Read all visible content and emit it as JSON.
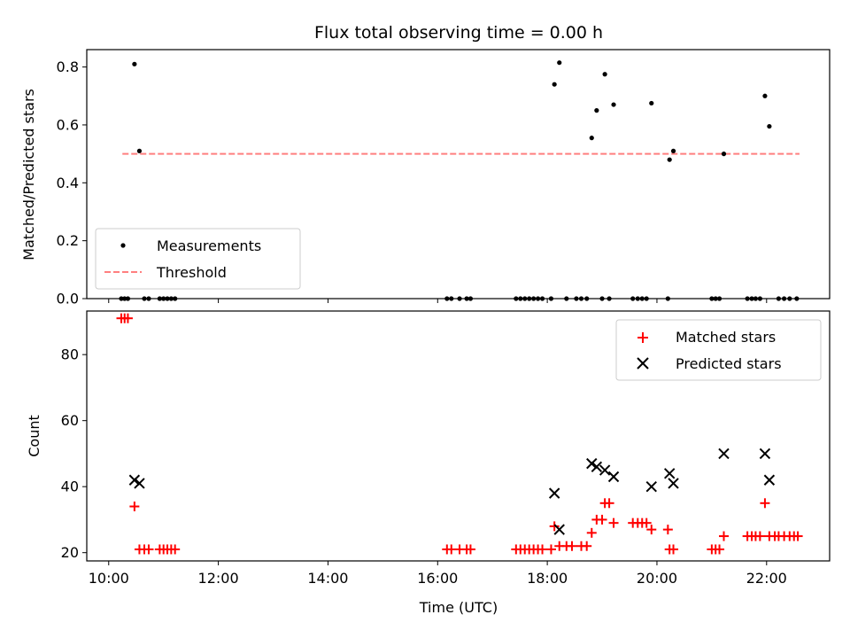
{
  "title": "Flux total observing time = 0.00 h",
  "chart_data": [
    {
      "type": "scatter",
      "ylabel": "Matched/Predicted stars",
      "xlim": [
        9.6,
        23.15
      ],
      "ylim": [
        0,
        0.86
      ],
      "yticks": [
        0.0,
        0.2,
        0.4,
        0.6,
        0.8
      ],
      "ytick_labels": [
        "0.0",
        "0.2",
        "0.4",
        "0.6",
        "0.8"
      ],
      "threshold": {
        "name": "Threshold",
        "value": 0.5,
        "x_start": 10.25,
        "x_end": 22.6,
        "color": "#ff7f7f",
        "style": "dashed"
      },
      "legend": {
        "position": "lower-left",
        "entries": [
          "Measurements",
          "Threshold"
        ]
      },
      "series": [
        {
          "name": "Measurements",
          "color": "#000000",
          "marker": "dot",
          "points": [
            [
              10.23,
              0
            ],
            [
              10.29,
              0
            ],
            [
              10.35,
              0
            ],
            [
              10.47,
              0.81
            ],
            [
              10.56,
              0.51
            ],
            [
              10.65,
              0
            ],
            [
              10.73,
              0
            ],
            [
              10.93,
              0
            ],
            [
              11.0,
              0
            ],
            [
              11.07,
              0
            ],
            [
              11.14,
              0
            ],
            [
              11.21,
              0
            ],
            [
              16.17,
              0
            ],
            [
              16.25,
              0
            ],
            [
              16.4,
              0
            ],
            [
              16.53,
              0
            ],
            [
              16.6,
              0
            ],
            [
              17.43,
              0
            ],
            [
              17.51,
              0
            ],
            [
              17.59,
              0
            ],
            [
              17.67,
              0
            ],
            [
              17.75,
              0
            ],
            [
              17.83,
              0
            ],
            [
              17.91,
              0
            ],
            [
              18.07,
              0
            ],
            [
              18.13,
              0.74
            ],
            [
              18.22,
              0.815
            ],
            [
              18.35,
              0
            ],
            [
              18.53,
              0
            ],
            [
              18.62,
              0
            ],
            [
              18.72,
              0
            ],
            [
              18.81,
              0.555
            ],
            [
              18.9,
              0.65
            ],
            [
              19.0,
              0
            ],
            [
              19.05,
              0.775
            ],
            [
              19.13,
              0
            ],
            [
              19.21,
              0.67
            ],
            [
              19.56,
              0
            ],
            [
              19.65,
              0
            ],
            [
              19.73,
              0
            ],
            [
              19.81,
              0
            ],
            [
              19.9,
              0.675
            ],
            [
              20.2,
              0
            ],
            [
              20.23,
              0.48
            ],
            [
              20.3,
              0.51
            ],
            [
              21.0,
              0
            ],
            [
              21.07,
              0
            ],
            [
              21.14,
              0
            ],
            [
              21.22,
              0.5
            ],
            [
              21.65,
              0
            ],
            [
              21.73,
              0
            ],
            [
              21.8,
              0
            ],
            [
              21.88,
              0
            ],
            [
              21.97,
              0.7
            ],
            [
              22.05,
              0.595
            ],
            [
              22.22,
              0
            ],
            [
              22.32,
              0
            ],
            [
              22.42,
              0
            ],
            [
              22.55,
              0
            ]
          ]
        }
      ]
    },
    {
      "type": "scatter",
      "xlabel": "Time (UTC)",
      "ylabel": "Count",
      "xlim": [
        9.6,
        23.15
      ],
      "ylim": [
        17.5,
        93.2
      ],
      "yticks": [
        20,
        40,
        60,
        80
      ],
      "ytick_labels": [
        "20",
        "40",
        "60",
        "80"
      ],
      "xticks": [
        10,
        12,
        14,
        16,
        18,
        20,
        22
      ],
      "xtick_labels": [
        "10:00",
        "12:00",
        "14:00",
        "16:00",
        "18:00",
        "20:00",
        "22:00"
      ],
      "legend": {
        "position": "top-right",
        "entries": [
          "Matched stars",
          "Predicted stars"
        ]
      },
      "series": [
        {
          "name": "Matched stars",
          "color": "#ff0000",
          "marker": "plus",
          "points": [
            [
              10.23,
              91
            ],
            [
              10.29,
              91
            ],
            [
              10.35,
              91
            ],
            [
              10.47,
              34
            ],
            [
              10.56,
              21
            ],
            [
              10.65,
              21
            ],
            [
              10.73,
              21
            ],
            [
              10.93,
              21
            ],
            [
              11.0,
              21
            ],
            [
              11.07,
              21
            ],
            [
              11.14,
              21
            ],
            [
              11.21,
              21
            ],
            [
              16.17,
              21
            ],
            [
              16.25,
              21
            ],
            [
              16.4,
              21
            ],
            [
              16.53,
              21
            ],
            [
              16.6,
              21
            ],
            [
              17.43,
              21
            ],
            [
              17.51,
              21
            ],
            [
              17.59,
              21
            ],
            [
              17.67,
              21
            ],
            [
              17.75,
              21
            ],
            [
              17.83,
              21
            ],
            [
              17.91,
              21
            ],
            [
              18.07,
              21
            ],
            [
              18.13,
              28
            ],
            [
              18.22,
              22
            ],
            [
              18.35,
              22
            ],
            [
              18.45,
              22
            ],
            [
              18.62,
              22
            ],
            [
              18.72,
              22
            ],
            [
              18.81,
              26
            ],
            [
              18.9,
              30
            ],
            [
              19.0,
              30
            ],
            [
              19.05,
              35
            ],
            [
              19.13,
              35
            ],
            [
              19.21,
              29
            ],
            [
              19.56,
              29
            ],
            [
              19.65,
              29
            ],
            [
              19.73,
              29
            ],
            [
              19.81,
              29
            ],
            [
              19.9,
              27
            ],
            [
              20.2,
              27
            ],
            [
              20.23,
              21
            ],
            [
              20.3,
              21
            ],
            [
              21.0,
              21
            ],
            [
              21.07,
              21
            ],
            [
              21.14,
              21
            ],
            [
              21.22,
              25
            ],
            [
              21.65,
              25
            ],
            [
              21.73,
              25
            ],
            [
              21.8,
              25
            ],
            [
              21.88,
              25
            ],
            [
              21.97,
              35
            ],
            [
              22.05,
              25
            ],
            [
              22.15,
              25
            ],
            [
              22.22,
              25
            ],
            [
              22.32,
              25
            ],
            [
              22.42,
              25
            ],
            [
              22.5,
              25
            ],
            [
              22.57,
              25
            ]
          ]
        },
        {
          "name": "Predicted stars",
          "color": "#000000",
          "marker": "x",
          "points": [
            [
              10.47,
              42
            ],
            [
              10.56,
              41
            ],
            [
              18.13,
              38
            ],
            [
              18.22,
              27
            ],
            [
              18.81,
              47
            ],
            [
              18.9,
              46
            ],
            [
              19.05,
              45
            ],
            [
              19.21,
              43
            ],
            [
              19.9,
              40
            ],
            [
              20.23,
              44
            ],
            [
              20.3,
              41
            ],
            [
              21.22,
              50
            ],
            [
              21.97,
              50
            ],
            [
              22.05,
              42
            ]
          ]
        }
      ]
    }
  ]
}
